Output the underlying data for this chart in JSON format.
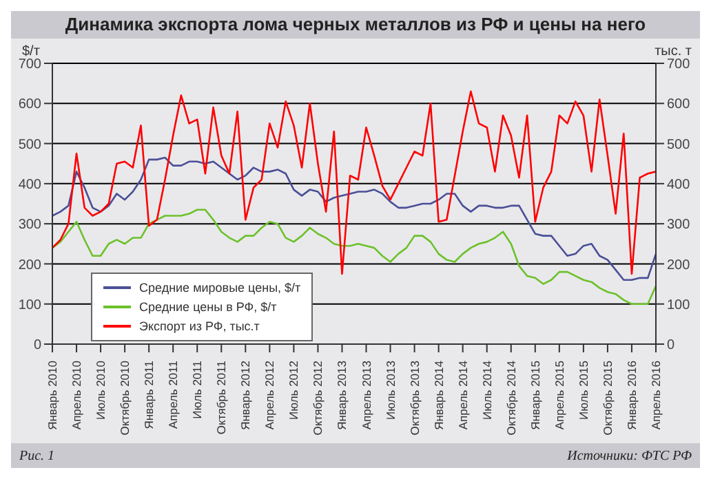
{
  "chart_data": {
    "type": "line",
    "title": "Динамика экспорта лома черных металлов из РФ и цены на него",
    "ylabel": "$/т",
    "y2label": "тыс. т",
    "categories": [
      "Январь 2010",
      null,
      null,
      "Апрель 2010",
      null,
      null,
      "Июль 2010",
      null,
      null,
      "Октябрь 2010",
      null,
      null,
      "Январь 2011",
      null,
      null,
      "Апрель 2011",
      null,
      null,
      "Июль 2011",
      null,
      null,
      "Октябрь 2011",
      null,
      null,
      "Январь 2012",
      null,
      null,
      "Апрель 2012",
      null,
      null,
      "Июль 2012",
      null,
      null,
      "Октябрь 2012",
      null,
      null,
      "Январь 2013",
      null,
      null,
      "Апрель 2013",
      null,
      null,
      "Июль 2013",
      null,
      null,
      "Октябрь 2013",
      null,
      null,
      "Январь 2014",
      null,
      null,
      "Апрель 2014",
      null,
      null,
      "Июль 2014",
      null,
      null,
      "Октябрь 2014",
      null,
      null,
      "Январь 2015",
      null,
      null,
      "Апрель 2015",
      null,
      null,
      "Июль 2015",
      null,
      null,
      "Октябрь 2015",
      null,
      null,
      "Январь 2016",
      null,
      null,
      "Апрель 2016"
    ],
    "series": [
      {
        "name": "Средние мировые цены, $/т",
        "color": "#4a4f96",
        "values": [
          320,
          330,
          345,
          430,
          390,
          340,
          330,
          345,
          375,
          360,
          380,
          410,
          460,
          460,
          465,
          445,
          445,
          455,
          455,
          450,
          455,
          440,
          425,
          410,
          420,
          440,
          430,
          430,
          435,
          425,
          385,
          370,
          385,
          380,
          355,
          365,
          370,
          375,
          380,
          380,
          385,
          375,
          355,
          340,
          340,
          345,
          350,
          350,
          360,
          375,
          375,
          345,
          330,
          345,
          345,
          340,
          340,
          345,
          345,
          310,
          275,
          270,
          270,
          245,
          220,
          225,
          245,
          250,
          220,
          210,
          185,
          160,
          160,
          165,
          165,
          225
        ]
      },
      {
        "name": "Средние цены в РФ, $/т",
        "color": "#6cc12a",
        "values": [
          240,
          255,
          280,
          305,
          260,
          220,
          220,
          250,
          260,
          250,
          265,
          265,
          300,
          310,
          320,
          320,
          320,
          325,
          335,
          335,
          310,
          280,
          265,
          255,
          270,
          270,
          290,
          305,
          300,
          265,
          255,
          270,
          290,
          275,
          265,
          250,
          245,
          245,
          250,
          245,
          240,
          220,
          205,
          225,
          240,
          270,
          270,
          255,
          225,
          210,
          205,
          225,
          240,
          250,
          255,
          265,
          280,
          250,
          195,
          170,
          165,
          150,
          160,
          180,
          180,
          170,
          160,
          155,
          140,
          130,
          125,
          110,
          100,
          100,
          100,
          145
        ]
      },
      {
        "name": "Экспорт из РФ, тыс.т",
        "color": "#ff0000",
        "axis": "y2",
        "values": [
          240,
          260,
          300,
          475,
          340,
          320,
          330,
          350,
          450,
          455,
          440,
          545,
          295,
          310,
          410,
          520,
          620,
          550,
          560,
          425,
          590,
          470,
          425,
          580,
          310,
          390,
          410,
          550,
          490,
          605,
          545,
          440,
          600,
          450,
          330,
          530,
          175,
          420,
          410,
          540,
          470,
          395,
          360,
          400,
          440,
          480,
          470,
          600,
          305,
          310,
          420,
          530,
          630,
          550,
          540,
          430,
          570,
          520,
          415,
          570,
          305,
          390,
          430,
          570,
          550,
          605,
          570,
          430,
          610,
          470,
          325,
          525,
          175,
          415,
          425,
          430
        ]
      }
    ],
    "ylim": [
      0,
      700
    ],
    "yticks": [
      0,
      100,
      200,
      300,
      400,
      500,
      600,
      700
    ],
    "y2lim": [
      0,
      700
    ],
    "y2ticks": [
      0,
      100,
      200,
      300,
      400,
      500,
      600,
      700
    ],
    "grid": "y",
    "legend": "bottom left",
    "annotations": [
      "Рис. 1",
      "Источники: ФТС РФ"
    ]
  }
}
